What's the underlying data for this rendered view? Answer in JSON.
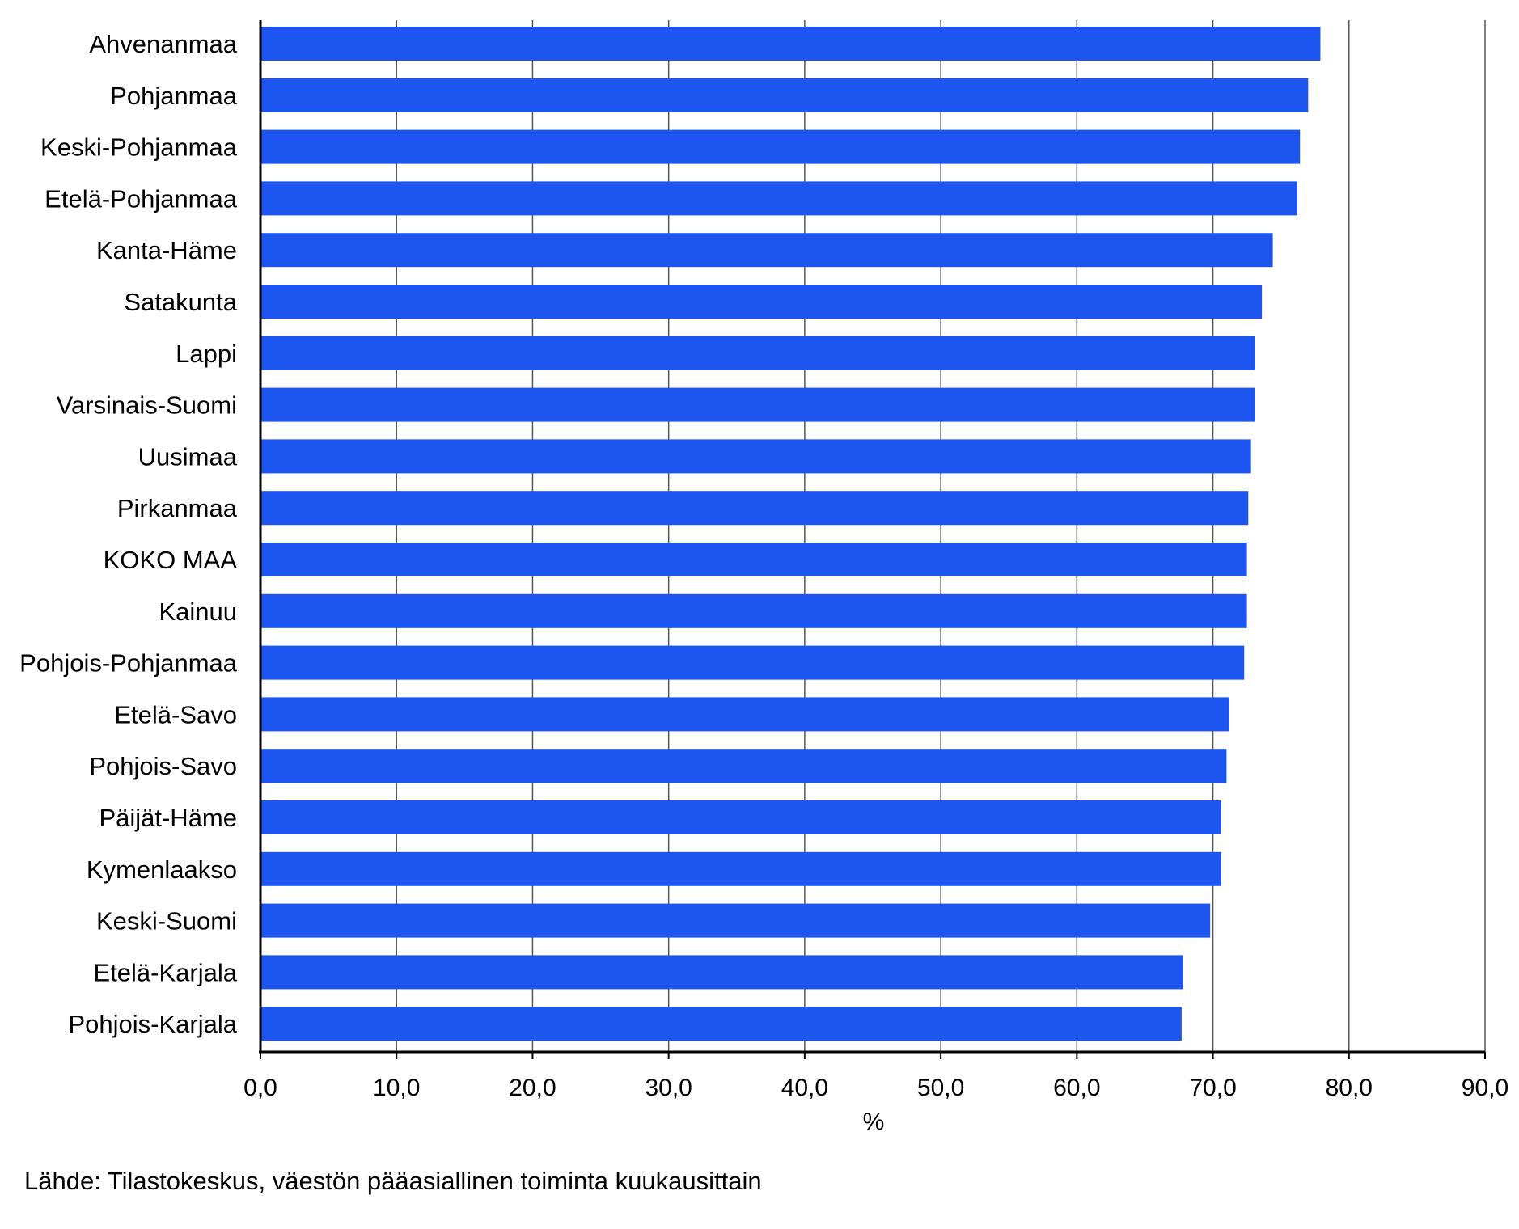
{
  "chart_data": {
    "type": "bar",
    "orientation": "horizontal",
    "categories": [
      "Ahvenanmaa",
      "Pohjanmaa",
      "Keski-Pohjanmaa",
      "Etelä-Pohjanmaa",
      "Kanta-Häme",
      "Satakunta",
      "Lappi",
      "Varsinais-Suomi",
      "Uusimaa",
      "Pirkanmaa",
      "KOKO MAA",
      "Kainuu",
      "Pohjois-Pohjanmaa",
      "Etelä-Savo",
      "Pohjois-Savo",
      "Päijät-Häme",
      "Kymenlaakso",
      "Keski-Suomi",
      "Etelä-Karjala",
      "Pohjois-Karjala"
    ],
    "values": [
      77.9,
      77.0,
      76.4,
      76.2,
      74.4,
      73.6,
      73.1,
      73.1,
      72.8,
      72.6,
      72.5,
      72.5,
      72.3,
      71.2,
      71.0,
      70.6,
      70.6,
      69.8,
      67.8,
      67.7
    ],
    "xlim": [
      0,
      90
    ],
    "xticks": [
      "0,0",
      "10,0",
      "20,0",
      "30,0",
      "40,0",
      "50,0",
      "60,0",
      "70,0",
      "80,0",
      "90,0"
    ],
    "xlabel": "%",
    "grid": "vertical",
    "legend": "none",
    "bar_color": "#1c55f0"
  },
  "source": "Lähde: Tilastokeskus, väestön pääasiallinen toiminta kuukausittain"
}
